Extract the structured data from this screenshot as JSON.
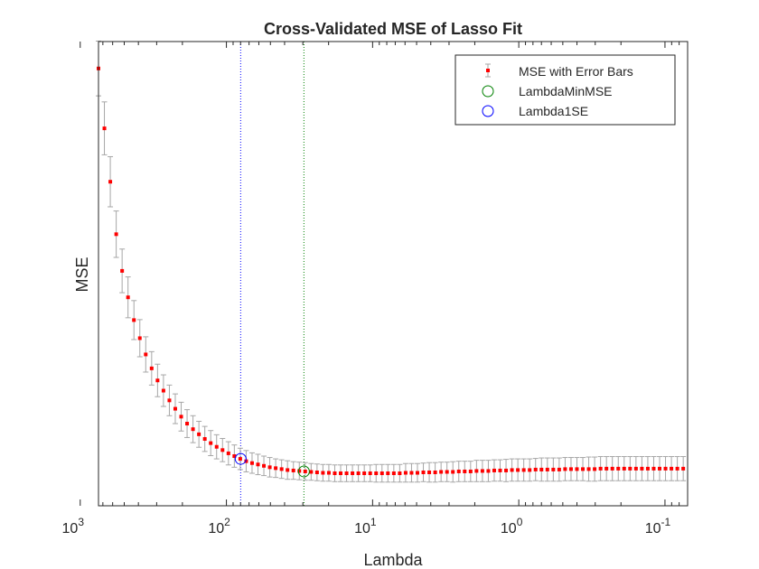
{
  "chart_data": {
    "type": "scatter",
    "title": "Cross-Validated MSE of Lasso Fit",
    "xlabel": "Lambda",
    "ylabel": "MSE",
    "x_scale": "log",
    "x_reversed": true,
    "xlim": [
      750,
      0.07
    ],
    "x_ticks": [
      {
        "value": 1000,
        "base": "10",
        "exp": "3"
      },
      {
        "value": 100,
        "base": "10",
        "exp": "2"
      },
      {
        "value": 10,
        "base": "10",
        "exp": "1"
      },
      {
        "value": 1,
        "base": "10",
        "exp": "0"
      },
      {
        "value": 0.1,
        "base": "10",
        "exp": "-1"
      }
    ],
    "y_ticks_visible": false,
    "ylim": [
      0,
      1
    ],
    "grid": false,
    "legend_position": "top-right",
    "legend": [
      {
        "label": "MSE with Error Bars",
        "marker": "red-point-errorbar"
      },
      {
        "label": "LambdaMinMSE",
        "marker": "green-circle"
      },
      {
        "label": "Lambda1SE",
        "marker": "blue-circle"
      }
    ],
    "colors": {
      "points": "#ff0000",
      "errorbars": "#a6a6a6",
      "min_mse": "#008000",
      "one_se": "#0000ff"
    },
    "lambda_min_mse": 29.5,
    "lambda_1se": 79.9,
    "series": [
      {
        "name": "MSE with Error Bars",
        "lambda_start": 750,
        "lambda_end": 0.075,
        "n_points": 100,
        "mse_y": [
          0.942,
          0.813,
          0.698,
          0.585,
          0.506,
          0.449,
          0.4,
          0.361,
          0.326,
          0.296,
          0.27,
          0.248,
          0.227,
          0.209,
          0.192,
          0.177,
          0.165,
          0.154,
          0.144,
          0.135,
          0.127,
          0.12,
          0.113,
          0.107,
          0.101,
          0.096,
          0.092,
          0.089,
          0.086,
          0.083,
          0.081,
          0.079,
          0.077,
          0.076,
          0.075,
          0.074,
          0.073,
          0.072,
          0.071,
          0.071,
          0.07,
          0.07,
          0.07,
          0.07,
          0.07,
          0.07,
          0.07,
          0.07,
          0.07,
          0.07,
          0.07,
          0.07,
          0.071,
          0.071,
          0.071,
          0.072,
          0.072,
          0.072,
          0.073,
          0.073,
          0.073,
          0.074,
          0.074,
          0.074,
          0.075,
          0.075,
          0.075,
          0.076,
          0.076,
          0.076,
          0.077,
          0.077,
          0.077,
          0.077,
          0.078,
          0.078,
          0.078,
          0.078,
          0.078,
          0.079,
          0.079,
          0.079,
          0.079,
          0.079,
          0.079,
          0.08,
          0.08,
          0.08,
          0.08,
          0.08,
          0.08,
          0.08,
          0.08,
          0.08,
          0.08,
          0.08,
          0.08,
          0.08,
          0.08,
          0.08
        ],
        "err": [
          0.059,
          0.057,
          0.054,
          0.05,
          0.047,
          0.044,
          0.042,
          0.04,
          0.038,
          0.036,
          0.035,
          0.034,
          0.033,
          0.032,
          0.031,
          0.03,
          0.029,
          0.028,
          0.027,
          0.027,
          0.026,
          0.025,
          0.025,
          0.024,
          0.023,
          0.023,
          0.022,
          0.022,
          0.021,
          0.021,
          0.02,
          0.02,
          0.02,
          0.019,
          0.019,
          0.019,
          0.018,
          0.018,
          0.018,
          0.018,
          0.018,
          0.018,
          0.018,
          0.018,
          0.018,
          0.018,
          0.018,
          0.019,
          0.019,
          0.019,
          0.019,
          0.019,
          0.02,
          0.02,
          0.02,
          0.02,
          0.021,
          0.021,
          0.021,
          0.021,
          0.022,
          0.022,
          0.022,
          0.022,
          0.023,
          0.023,
          0.023,
          0.023,
          0.023,
          0.024,
          0.024,
          0.024,
          0.024,
          0.024,
          0.024,
          0.025,
          0.025,
          0.025,
          0.025,
          0.025,
          0.025,
          0.025,
          0.025,
          0.026,
          0.026,
          0.026,
          0.026,
          0.026,
          0.026,
          0.026,
          0.026,
          0.026,
          0.026,
          0.026,
          0.026,
          0.026,
          0.026,
          0.026,
          0.026,
          0.026
        ]
      }
    ]
  }
}
